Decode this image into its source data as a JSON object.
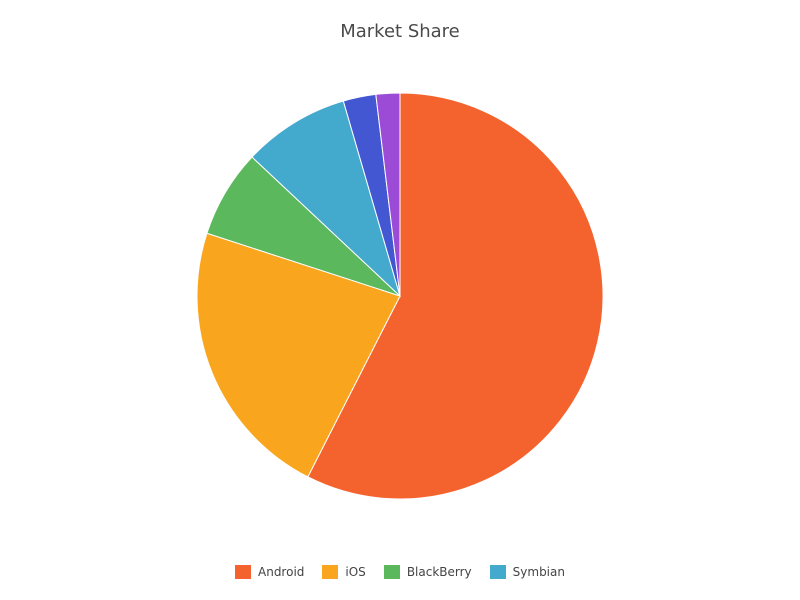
{
  "chart_data": {
    "type": "pie",
    "title": "Market Share",
    "legend_position": "bottom-center",
    "slices": [
      {
        "name": "Android",
        "value": 57.5,
        "color": "#F4632E",
        "in_legend": true
      },
      {
        "name": "iOS",
        "value": 22.5,
        "color": "#F9A61E",
        "in_legend": true
      },
      {
        "name": "BlackBerry",
        "value": 7.0,
        "color": "#5BB85C",
        "in_legend": true
      },
      {
        "name": "Symbian",
        "value": 8.5,
        "color": "#43A9CD",
        "in_legend": true
      },
      {
        "name": "",
        "value": 2.6,
        "color": "#4257D1",
        "in_legend": false
      },
      {
        "name": "",
        "value": 1.9,
        "color": "#9B4BD5",
        "in_legend": false
      }
    ]
  }
}
